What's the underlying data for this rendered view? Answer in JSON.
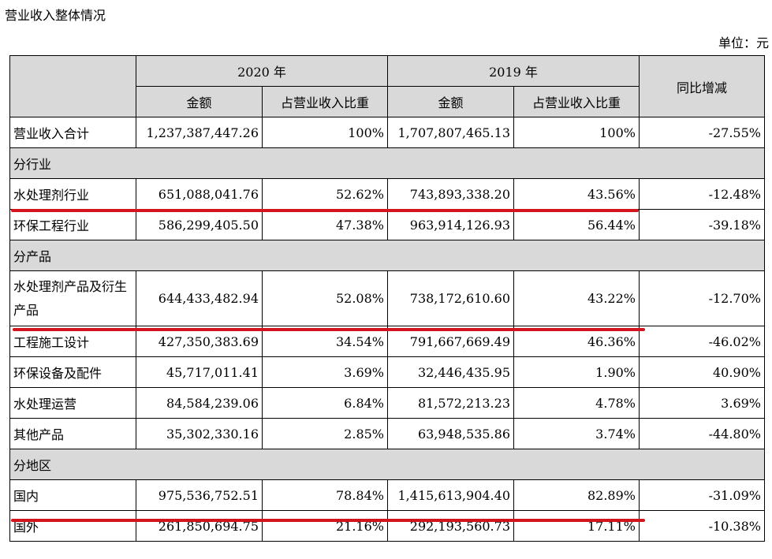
{
  "title": "营业收入整体情况",
  "unit": "单位：元",
  "header": {
    "year1": "2020 年",
    "year2": "2019 年",
    "yoy": "同比增减",
    "amount1": "金额",
    "ratio1": "占营业收入比重",
    "amount2": "金额",
    "ratio2": "占营业收入比重"
  },
  "total": {
    "label": "营业收入合计",
    "a2020": "1,237,387,447.26",
    "r2020": "100%",
    "a2019": "1,707,807,465.13",
    "r2019": "100%",
    "yoy": "-27.55%"
  },
  "sections": {
    "industry": "分行业",
    "product": "分产品",
    "region": "分地区"
  },
  "rows": [
    {
      "label": "水处理剂行业",
      "a2020": "651,088,041.76",
      "r2020": "52.62%",
      "a2019": "743,893,338.20",
      "r2019": "43.56%",
      "yoy": "-12.48%"
    },
    {
      "label": "环保工程行业",
      "a2020": "586,299,405.50",
      "r2020": "47.38%",
      "a2019": "963,914,126.93",
      "r2019": "56.44%",
      "yoy": "-39.18%"
    },
    {
      "label": "水处理剂产品及衍生产品",
      "a2020": "644,433,482.94",
      "r2020": "52.08%",
      "a2019": "738,172,610.60",
      "r2019": "43.22%",
      "yoy": "-12.70%"
    },
    {
      "label": "工程施工设计",
      "a2020": "427,350,383.69",
      "r2020": "34.54%",
      "a2019": "791,667,669.49",
      "r2019": "46.36%",
      "yoy": "-46.02%"
    },
    {
      "label": "环保设备及配件",
      "a2020": "45,717,011.41",
      "r2020": "3.69%",
      "a2019": "32,446,435.95",
      "r2019": "1.90%",
      "yoy": "40.90%"
    },
    {
      "label": "水处理运营",
      "a2020": "84,584,239.06",
      "r2020": "6.84%",
      "a2019": "81,572,213.23",
      "r2019": "4.78%",
      "yoy": "3.69%"
    },
    {
      "label": "其他产品",
      "a2020": "35,302,330.16",
      "r2020": "2.85%",
      "a2019": "63,948,535.86",
      "r2019": "3.74%",
      "yoy": "-44.80%"
    },
    {
      "label": "国内",
      "a2020": "975,536,752.51",
      "r2020": "78.84%",
      "a2019": "1,415,613,904.40",
      "r2019": "82.89%",
      "yoy": "-31.09%"
    },
    {
      "label": "国外",
      "a2020": "261,850,694.75",
      "r2020": "21.16%",
      "a2019": "292,193,560.73",
      "r2019": "17.11%",
      "yoy": "-10.38%"
    }
  ],
  "colors": {
    "highlight": "#d4141c",
    "header_bg": "#d9d9d9"
  }
}
